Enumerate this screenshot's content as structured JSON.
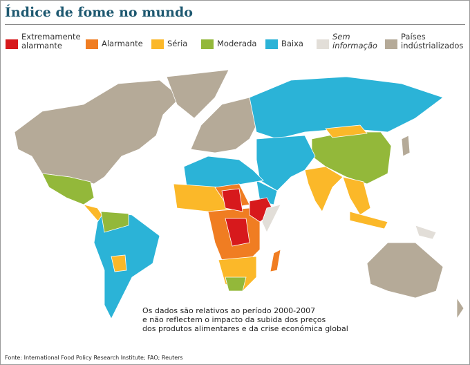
{
  "title": "Índice de fome no mundo",
  "legend": [
    {
      "label": "Extremamente alarmante",
      "color": "#d7191c"
    },
    {
      "label": "Alarmante",
      "color": "#f07d22"
    },
    {
      "label": "Séria",
      "color": "#fbb829"
    },
    {
      "label": "Moderada",
      "color": "#93b83a"
    },
    {
      "label": "Baixa",
      "color": "#2bb3d7"
    },
    {
      "label": "Sem informação",
      "color": "#e2ded8"
    },
    {
      "label": "Países indústrializados",
      "color": "#b5aa98"
    }
  ],
  "note": [
    "Os dados são relativos ao período 2000-2007",
    "e não reflectem o impacto da subida dos preços",
    "dos produtos alimentares e da crise económica global"
  ],
  "source": "Fonte: International Food Policy Research Institute; FAO; Reuters"
}
